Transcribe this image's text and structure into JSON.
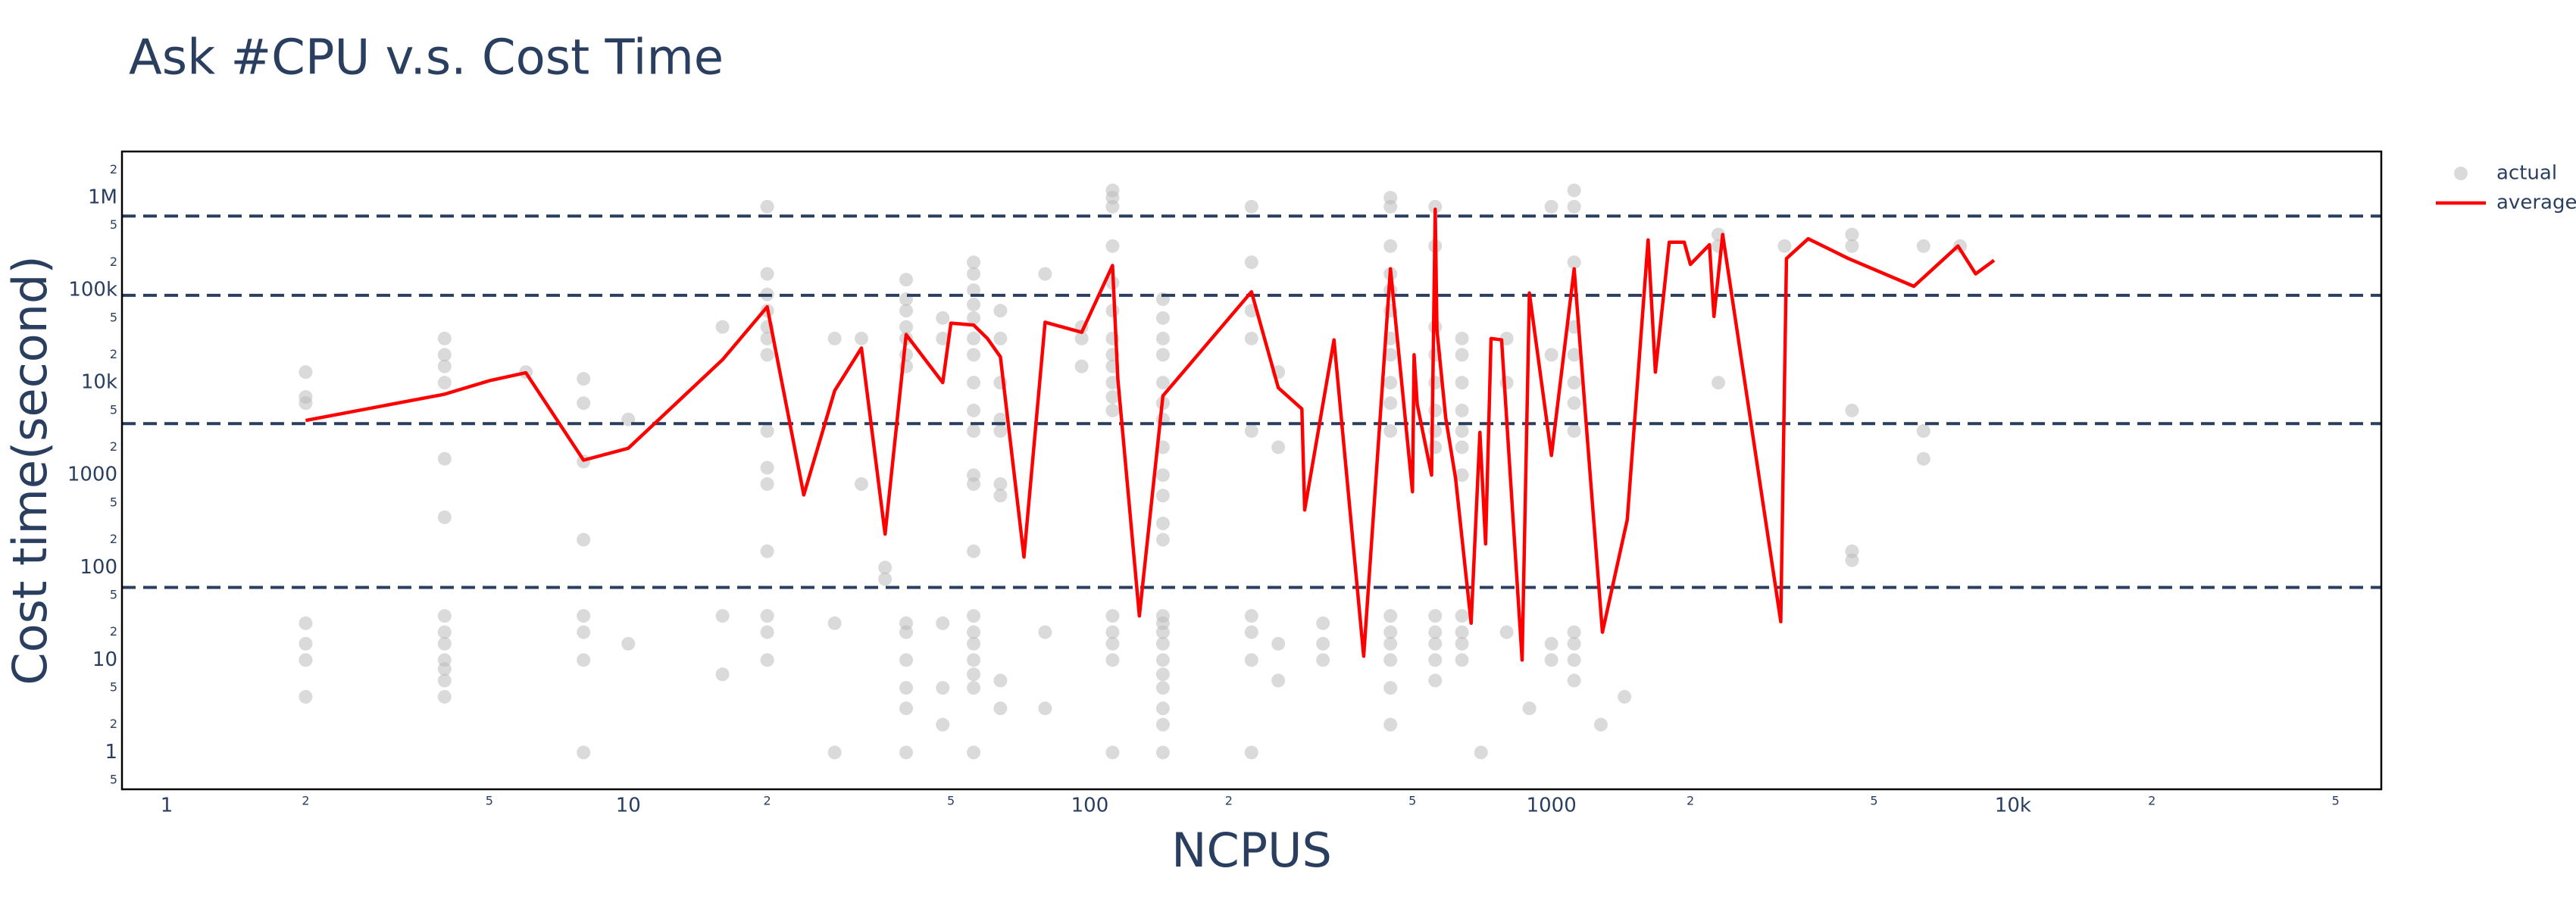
{
  "chart_data": {
    "type": "scatter-line",
    "title": "Ask #CPU v.s. Cost Time",
    "x_label": "NCPUS",
    "y_label": "Cost time(second)",
    "log_x": true,
    "log_y": true,
    "xlim": [
      0.8,
      62800
    ],
    "ylim": [
      0.4,
      3160000
    ],
    "xticks": [
      1,
      2,
      5,
      10,
      {
        "value": 20,
        "label": "2"
      },
      {
        "value": 50,
        "label": "5"
      },
      100,
      {
        "value": 200,
        "label": "2"
      },
      {
        "value": 500,
        "label": "5"
      },
      1000,
      {
        "value": 2000,
        "label": "2"
      },
      {
        "value": 5000,
        "label": "5"
      },
      {
        "value": 10000,
        "label": "10k"
      },
      {
        "value": 20000,
        "label": "2"
      },
      {
        "value": 50000,
        "label": "5"
      }
    ],
    "yticks": [
      {
        "value": 0.5,
        "label": "5"
      },
      1,
      2,
      5,
      10,
      {
        "value": 20,
        "label": "2"
      },
      {
        "value": 50,
        "label": "5"
      },
      100,
      {
        "value": 200,
        "label": "2"
      },
      {
        "value": 500,
        "label": "5"
      },
      1000,
      {
        "value": 2000,
        "label": "2"
      },
      {
        "value": 5000,
        "label": "5"
      },
      {
        "value": 10000,
        "label": "10k"
      },
      {
        "value": 20000,
        "label": "2"
      },
      {
        "value": 50000,
        "label": "5"
      },
      {
        "value": 100000,
        "label": "100k"
      },
      {
        "value": 200000,
        "label": "2"
      },
      {
        "value": 500000,
        "label": "5"
      },
      {
        "value": 1000000,
        "label": "1M"
      },
      {
        "value": 2000000,
        "label": "2"
      }
    ],
    "hlines": [
      633000,
      88000,
      3600,
      61
    ],
    "hline_color": "#2a3f5f",
    "legend_position": "right",
    "series": [
      {
        "name": "actual",
        "color": "#bbbbbb",
        "mode": "markers",
        "x": [
          2,
          2,
          2,
          2,
          2,
          2,
          2,
          4,
          4,
          4,
          4,
          4,
          4,
          4,
          4,
          4,
          4,
          4,
          4,
          4,
          6,
          8,
          8,
          8,
          8,
          8,
          8,
          8,
          8,
          10,
          10,
          16,
          16,
          16,
          20,
          20,
          20,
          20,
          20,
          20,
          20,
          20,
          20,
          20,
          20,
          20,
          20,
          20,
          28,
          28,
          28,
          32,
          32,
          36,
          36,
          40,
          40,
          40,
          40,
          40,
          40,
          40,
          40,
          40,
          40,
          40,
          40,
          40,
          48,
          48,
          48,
          48,
          48,
          56,
          56,
          56,
          56,
          56,
          56,
          56,
          56,
          56,
          56,
          56,
          56,
          56,
          56,
          56,
          56,
          56,
          56,
          56,
          56,
          64,
          64,
          64,
          64,
          64,
          64,
          64,
          64,
          64,
          80,
          80,
          80,
          96,
          96,
          96,
          112,
          112,
          112,
          112,
          112,
          112,
          112,
          112,
          112,
          112,
          112,
          112,
          112,
          112,
          112,
          112,
          112,
          144,
          144,
          144,
          144,
          144,
          144,
          144,
          144,
          144,
          144,
          144,
          144,
          144,
          144,
          144,
          144,
          144,
          144,
          144,
          144,
          144,
          144,
          224,
          224,
          224,
          224,
          224,
          224,
          224,
          224,
          224,
          256,
          256,
          256,
          256,
          320,
          320,
          320,
          448,
          448,
          448,
          448,
          448,
          448,
          448,
          448,
          448,
          448,
          448,
          448,
          448,
          448,
          448,
          448,
          448,
          560,
          560,
          560,
          560,
          560,
          560,
          560,
          560,
          560,
          560,
          560,
          560,
          560,
          640,
          640,
          640,
          640,
          640,
          640,
          640,
          640,
          640,
          640,
          640,
          704,
          800,
          800,
          800,
          896,
          1000,
          1000,
          1000,
          1000,
          1120,
          1120,
          1120,
          1120,
          1120,
          1120,
          1120,
          1120,
          1120,
          1120,
          1120,
          1120,
          1280,
          1440,
          2300,
          2300,
          2300,
          3200,
          4480,
          4480,
          4480,
          4480,
          4480,
          6400,
          6400,
          6400,
          7680
        ],
        "values": [
          13000,
          7000,
          6000,
          25,
          15,
          10,
          4,
          30000,
          20000,
          15000,
          10000,
          1500,
          350,
          30,
          20,
          15,
          10,
          8,
          6,
          4,
          13000,
          11000,
          6000,
          1400,
          200,
          30,
          20,
          10,
          1,
          4000,
          15,
          40000,
          30,
          7,
          800000,
          150000,
          90000,
          60000,
          40000,
          30000,
          20000,
          3000,
          1200,
          800,
          150,
          30,
          20,
          10,
          30000,
          25,
          1,
          30000,
          800,
          100,
          75,
          130000,
          80000,
          60000,
          40000,
          30000,
          20000,
          15000,
          25,
          20,
          10,
          5,
          3,
          1,
          50000,
          30000,
          25,
          5,
          2,
          200000,
          150000,
          100000,
          70000,
          50000,
          30000,
          20000,
          10000,
          5000,
          3000,
          1000,
          800,
          150,
          30,
          20,
          15,
          10,
          7,
          5,
          1,
          60000,
          30000,
          10000,
          4000,
          3000,
          800,
          600,
          6,
          3,
          150000,
          20,
          3,
          40000,
          30000,
          15000,
          1200000,
          1000000,
          800000,
          300000,
          120000,
          60000,
          30000,
          20000,
          15000,
          10000,
          7000,
          5000,
          30,
          20,
          15,
          10,
          1,
          80000,
          50000,
          30000,
          20000,
          10000,
          6000,
          4000,
          2000,
          1000,
          600,
          300,
          200,
          30,
          25,
          20,
          15,
          10,
          7,
          5,
          3,
          2,
          1,
          800000,
          200000,
          60000,
          30000,
          3000,
          30,
          20,
          10,
          1,
          13000,
          2000,
          15,
          6,
          25,
          15,
          10,
          1000000,
          800000,
          300000,
          150000,
          100000,
          60000,
          30000,
          20000,
          10000,
          6000,
          3000,
          30,
          20,
          15,
          10,
          5,
          2,
          800000,
          300000,
          40000,
          20000,
          10000,
          5000,
          3000,
          2000,
          30,
          20,
          15,
          10,
          6,
          30000,
          20000,
          10000,
          5000,
          3000,
          2000,
          1000,
          30,
          20,
          15,
          10,
          1,
          30000,
          10000,
          20,
          3,
          800000,
          20000,
          15,
          10,
          1200000,
          800000,
          200000,
          40000,
          20000,
          10000,
          6000,
          3000,
          20,
          15,
          10,
          6,
          2,
          4,
          400000,
          300000,
          10000,
          300000,
          400000,
          300000,
          5000,
          150,
          120,
          300000,
          3000,
          1500,
          300000
        ]
      },
      {
        "name": "average",
        "color": "#ff0000",
        "mode": "lines",
        "x": [
          2,
          4,
          5,
          6,
          8,
          10,
          16,
          20,
          24,
          28,
          32,
          36,
          40,
          48,
          50,
          56,
          60,
          64,
          72,
          80,
          96,
          112,
          115,
          128,
          144,
          224,
          256,
          288,
          292,
          338,
          392,
          448,
          500,
          504,
          512,
          550,
          560,
          565,
          590,
          620,
          670,
          700,
          720,
          740,
          780,
          864,
          896,
          1000,
          1120,
          1290,
          1460,
          1620,
          1680,
          1800,
          1940,
          2000,
          2200,
          2250,
          2350,
          3140,
          3230,
          3600,
          4400,
          6100,
          7600,
          8300,
          9100
        ],
        "values": [
          3900,
          7500,
          10500,
          12800,
          1450,
          1950,
          17700,
          66000,
          610,
          8200,
          23700,
          230,
          33000,
          10000,
          44000,
          42000,
          30000,
          19000,
          130,
          45000,
          35000,
          185000,
          11000,
          30,
          7200,
          96000,
          8800,
          5200,
          420,
          29000,
          11,
          170000,
          660,
          20000,
          5800,
          1000,
          750000,
          37000,
          4200,
          920,
          25,
          2900,
          180,
          30000,
          29000,
          10,
          93000,
          1630,
          170000,
          20,
          330,
          350000,
          13000,
          330000,
          330000,
          190000,
          310000,
          52000,
          400000,
          26,
          220000,
          360000,
          220000,
          110000,
          300000,
          150000,
          210000
        ]
      }
    ]
  }
}
